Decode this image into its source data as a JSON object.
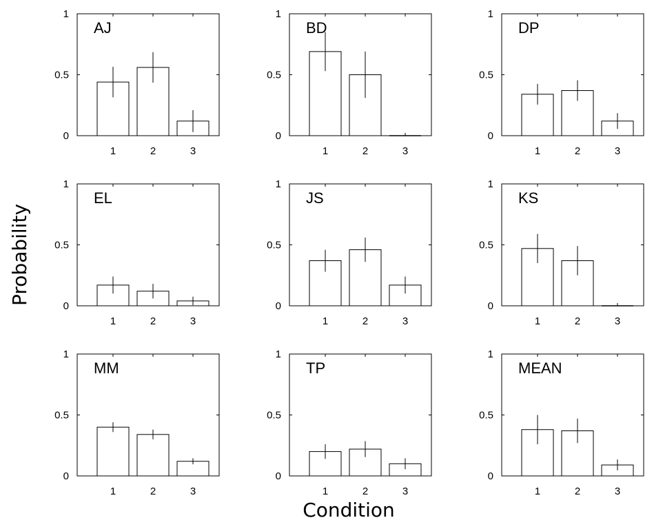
{
  "chart_data": {
    "type": "bar",
    "ylabel": "Probability",
    "xlabel": "Condition",
    "categories": [
      "1",
      "2",
      "3"
    ],
    "ylim": [
      0,
      1
    ],
    "yticks": [
      "0",
      "0.5",
      "1"
    ],
    "grid": false,
    "panels": [
      {
        "label": "AJ",
        "values": [
          0.44,
          0.56,
          0.12
        ],
        "errors": [
          0.125,
          0.125,
          0.09
        ]
      },
      {
        "label": "BD",
        "values": [
          0.69,
          0.5,
          0.0
        ],
        "errors": [
          0.16,
          0.19,
          0.0
        ]
      },
      {
        "label": "DP",
        "values": [
          0.34,
          0.37,
          0.12
        ],
        "errors": [
          0.085,
          0.085,
          0.065
        ]
      },
      {
        "label": "EL",
        "values": [
          0.17,
          0.12,
          0.04
        ],
        "errors": [
          0.07,
          0.06,
          0.035
        ]
      },
      {
        "label": "JS",
        "values": [
          0.37,
          0.46,
          0.17
        ],
        "errors": [
          0.09,
          0.1,
          0.07
        ]
      },
      {
        "label": "KS",
        "values": [
          0.47,
          0.37,
          0.0
        ],
        "errors": [
          0.12,
          0.12,
          0.0
        ]
      },
      {
        "label": "MM",
        "values": [
          0.4,
          0.34,
          0.12
        ],
        "errors": [
          0.04,
          0.04,
          0.025
        ]
      },
      {
        "label": "TP",
        "values": [
          0.2,
          0.22,
          0.1
        ],
        "errors": [
          0.06,
          0.065,
          0.045
        ]
      },
      {
        "label": "MEAN",
        "values": [
          0.38,
          0.37,
          0.09
        ],
        "errors": [
          0.12,
          0.1,
          0.045
        ]
      }
    ]
  }
}
